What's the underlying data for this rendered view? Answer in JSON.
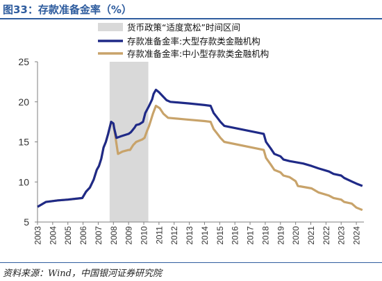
{
  "figure_title": "图33：存款准备金率（%）",
  "source_note": "资料来源：Wind，中国银河证券研究院",
  "chart_data": {
    "type": "line",
    "title": "",
    "xlabel": "",
    "ylabel": "",
    "ylim": [
      5,
      25
    ],
    "yticks": [
      5,
      10,
      15,
      20,
      25
    ],
    "xlim": [
      2003,
      2024.5
    ],
    "xticks": [
      "2003",
      "2004",
      "2005",
      "2006",
      "2007",
      "2008",
      "2009",
      "2010",
      "2011",
      "2012",
      "2013",
      "2014",
      "2015",
      "2016",
      "2017",
      "2018",
      "2019",
      "2020",
      "2021",
      "2022",
      "2023",
      "2024"
    ],
    "grid": false,
    "legend_position": "top-right",
    "shaded_region": {
      "label": "货币政策“适度宽松”时间区间",
      "x_start": 2007.75,
      "x_end": 2010.3,
      "color": "#d9d9d9"
    },
    "series": [
      {
        "name": "存款准备金率:大型存款类金融机构",
        "color": "#1f2a87",
        "points": [
          [
            2003.0,
            6.9
          ],
          [
            2003.55,
            7.5
          ],
          [
            2004.35,
            7.7
          ],
          [
            2005.0,
            7.8
          ],
          [
            2005.95,
            8.0
          ],
          [
            2006.2,
            8.8
          ],
          [
            2006.45,
            9.3
          ],
          [
            2006.7,
            10.3
          ],
          [
            2006.9,
            11.5
          ],
          [
            2007.05,
            12.0
          ],
          [
            2007.2,
            12.9
          ],
          [
            2007.35,
            14.3
          ],
          [
            2007.5,
            15.0
          ],
          [
            2007.65,
            16.0
          ],
          [
            2007.85,
            17.5
          ],
          [
            2008.0,
            17.3
          ],
          [
            2008.05,
            16.7
          ],
          [
            2008.2,
            15.5
          ],
          [
            2008.5,
            15.7
          ],
          [
            2009.0,
            16.0
          ],
          [
            2009.15,
            16.2
          ],
          [
            2009.4,
            16.8
          ],
          [
            2009.5,
            17.1
          ],
          [
            2009.7,
            17.2
          ],
          [
            2009.95,
            17.5
          ],
          [
            2010.1,
            18.6
          ],
          [
            2010.35,
            19.5
          ],
          [
            2010.55,
            20.3
          ],
          [
            2010.65,
            21.0
          ],
          [
            2010.8,
            21.5
          ],
          [
            2011.0,
            21.2
          ],
          [
            2011.15,
            20.9
          ],
          [
            2011.5,
            20.2
          ],
          [
            2011.75,
            20.0
          ],
          [
            2013.0,
            19.8
          ],
          [
            2014.0,
            19.6
          ],
          [
            2014.4,
            19.5
          ],
          [
            2014.6,
            18.6
          ],
          [
            2014.85,
            18.0
          ],
          [
            2015.05,
            17.5
          ],
          [
            2015.3,
            17.0
          ],
          [
            2017.9,
            16.0
          ],
          [
            2018.05,
            15.0
          ],
          [
            2018.35,
            14.2
          ],
          [
            2018.6,
            13.5
          ],
          [
            2019.0,
            13.2
          ],
          [
            2019.2,
            12.8
          ],
          [
            2019.6,
            12.6
          ],
          [
            2020.5,
            12.3
          ],
          [
            2021.05,
            12.0
          ],
          [
            2021.5,
            11.7
          ],
          [
            2022.2,
            11.3
          ],
          [
            2022.5,
            11.0
          ],
          [
            2023.0,
            10.8
          ],
          [
            2023.2,
            10.5
          ],
          [
            2024.0,
            9.8
          ],
          [
            2024.4,
            9.5
          ]
        ]
      },
      {
        "name": "存款准备金率:中小型存款类金融机构",
        "color": "#c8a36a",
        "points": [
          [
            2003.0,
            6.9
          ],
          [
            2003.55,
            7.5
          ],
          [
            2004.35,
            7.7
          ],
          [
            2005.0,
            7.8
          ],
          [
            2005.95,
            8.0
          ],
          [
            2006.2,
            8.8
          ],
          [
            2006.45,
            9.3
          ],
          [
            2006.7,
            10.3
          ],
          [
            2006.9,
            11.5
          ],
          [
            2007.05,
            12.0
          ],
          [
            2007.2,
            12.9
          ],
          [
            2007.35,
            14.3
          ],
          [
            2007.5,
            15.0
          ],
          [
            2007.65,
            16.0
          ],
          [
            2007.85,
            17.5
          ],
          [
            2008.0,
            17.2
          ],
          [
            2008.1,
            16.0
          ],
          [
            2008.3,
            13.5
          ],
          [
            2008.6,
            13.8
          ],
          [
            2009.0,
            14.0
          ],
          [
            2009.1,
            14.0
          ],
          [
            2009.3,
            14.6
          ],
          [
            2009.5,
            15.0
          ],
          [
            2009.9,
            15.3
          ],
          [
            2010.05,
            15.5
          ],
          [
            2010.2,
            16.3
          ],
          [
            2010.35,
            17.0
          ],
          [
            2010.6,
            18.5
          ],
          [
            2010.8,
            19.5
          ],
          [
            2011.05,
            19.2
          ],
          [
            2011.3,
            18.5
          ],
          [
            2011.6,
            18.0
          ],
          [
            2012.8,
            17.8
          ],
          [
            2014.0,
            17.6
          ],
          [
            2014.4,
            17.5
          ],
          [
            2014.6,
            16.6
          ],
          [
            2014.85,
            16.0
          ],
          [
            2015.05,
            15.5
          ],
          [
            2015.3,
            15.0
          ],
          [
            2017.9,
            14.0
          ],
          [
            2018.05,
            13.0
          ],
          [
            2018.35,
            12.2
          ],
          [
            2018.6,
            11.5
          ],
          [
            2019.0,
            11.2
          ],
          [
            2019.2,
            10.8
          ],
          [
            2019.6,
            10.6
          ],
          [
            2020.0,
            10.1
          ],
          [
            2020.15,
            9.5
          ],
          [
            2021.05,
            9.2
          ],
          [
            2021.5,
            8.7
          ],
          [
            2022.2,
            8.3
          ],
          [
            2022.5,
            8.0
          ],
          [
            2023.0,
            7.8
          ],
          [
            2023.2,
            7.5
          ],
          [
            2023.7,
            7.3
          ],
          [
            2024.0,
            6.8
          ],
          [
            2024.4,
            6.5
          ]
        ]
      }
    ]
  }
}
